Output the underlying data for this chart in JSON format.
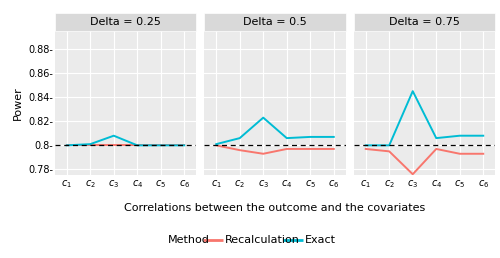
{
  "panels": [
    {
      "title": "Delta = 0.25",
      "recalc": [
        0.8,
        0.8,
        0.8,
        0.8,
        0.8,
        0.8
      ],
      "exact": [
        0.8,
        0.801,
        0.808,
        0.8,
        0.8,
        0.8
      ]
    },
    {
      "title": "Delta = 0.5",
      "recalc": [
        0.8,
        0.796,
        0.793,
        0.797,
        0.797,
        0.797
      ],
      "exact": [
        0.801,
        0.806,
        0.823,
        0.806,
        0.807,
        0.807
      ]
    },
    {
      "title": "Delta = 0.75",
      "recalc": [
        0.797,
        0.795,
        0.776,
        0.797,
        0.793,
        0.793
      ],
      "exact": [
        0.8,
        0.8,
        0.845,
        0.806,
        0.808,
        0.808
      ]
    }
  ],
  "xlabel": "Correlations between the outcome and the covariates",
  "ylabel": "Power",
  "ylim": [
    0.775,
    0.895
  ],
  "yticks": [
    0.78,
    0.8,
    0.82,
    0.84,
    0.86,
    0.88
  ],
  "ytick_labels": [
    "0.78-",
    "0.8-",
    "0.82-",
    "0.84-",
    "0.86-",
    "0.88-"
  ],
  "hline": 0.8,
  "color_recalc": "#F8766D",
  "color_exact": "#00BCD4",
  "panel_bg": "#EBEBEB",
  "header_bg": "#D9D9D9",
  "fig_bg": "#FFFFFF",
  "legend_title": "Method",
  "legend_recalc": "Recalculation",
  "legend_exact": "Exact",
  "title_fontsize": 8,
  "axis_fontsize": 8,
  "tick_fontsize": 7,
  "legend_fontsize": 8
}
